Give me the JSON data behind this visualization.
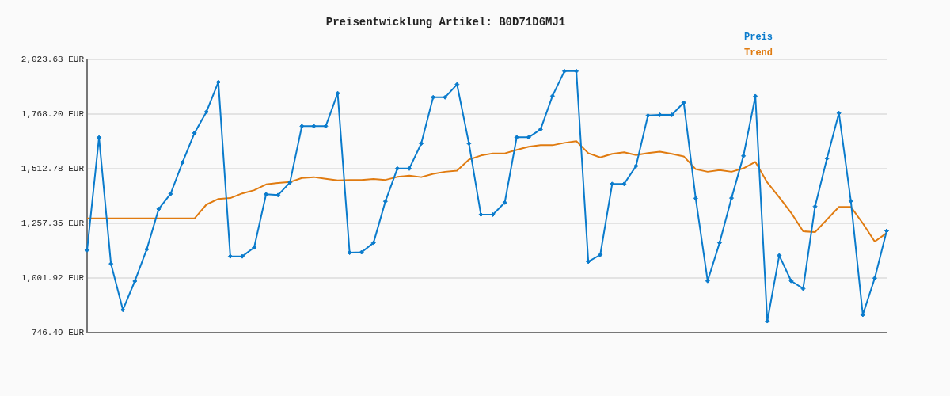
{
  "chart_data": {
    "type": "line",
    "title": "Preisentwicklung Artikel: B0D71D6MJ1",
    "categories": [
      null,
      null,
      null,
      null,
      null,
      null,
      null,
      null,
      null,
      null,
      null,
      null,
      null,
      null,
      null,
      null,
      null,
      null,
      null,
      null,
      null,
      null,
      null,
      null,
      null,
      null,
      null,
      null,
      null,
      null,
      null,
      null,
      null,
      null,
      null,
      null,
      null,
      null,
      null,
      null,
      null,
      null,
      null,
      null,
      null,
      null,
      null,
      null,
      null,
      null,
      null,
      null,
      null,
      null,
      null,
      null,
      null,
      null,
      null,
      null,
      null,
      null,
      null,
      null,
      null,
      null,
      null,
      null
    ],
    "series": [
      {
        "name": "Preis",
        "color": "#0a7bcc",
        "marker": "diamond",
        "values": [
          1132,
          1658,
          1068,
          853,
          987,
          1136,
          1324,
          1395,
          1542,
          1679,
          1778,
          1917,
          1103,
          1103,
          1144,
          1393,
          1389,
          1448,
          1711,
          1711,
          1711,
          1865,
          1120,
          1122,
          1166,
          1360,
          1513,
          1513,
          1630,
          1846,
          1846,
          1906,
          1630,
          1298,
          1298,
          1354,
          1659,
          1659,
          1696,
          1852,
          1968,
          1968,
          1078,
          1110,
          1441,
          1441,
          1525,
          1761,
          1764,
          1764,
          1821,
          1374,
          988,
          1166,
          1375,
          1572,
          1851,
          800,
          1107,
          988,
          952,
          1336,
          1560,
          1772,
          1361,
          830,
          1001,
          1222
        ]
      },
      {
        "name": "Trend",
        "color": "#e07b10",
        "marker": "none",
        "values": [
          1280,
          1280,
          1280,
          1280,
          1280,
          1280,
          1280,
          1280,
          1280,
          1280,
          1345,
          1371,
          1375,
          1397,
          1412,
          1439,
          1446,
          1450,
          1469,
          1473,
          1465,
          1458,
          1460,
          1460,
          1464,
          1460,
          1474,
          1480,
          1473,
          1488,
          1498,
          1503,
          1555,
          1574,
          1584,
          1584,
          1600,
          1615,
          1622,
          1622,
          1633,
          1641,
          1585,
          1565,
          1582,
          1589,
          1576,
          1585,
          1592,
          1582,
          1570,
          1510,
          1498,
          1506,
          1498,
          1514,
          1544,
          1448,
          1379,
          1306,
          1220,
          1216,
          1275,
          1334,
          1334,
          1257,
          1172,
          1212
        ]
      }
    ],
    "ylim": [
      746.49,
      2023.63
    ],
    "yticks": [
      {
        "value": 746.49,
        "label": "746.49 EUR"
      },
      {
        "value": 1001.92,
        "label": "1,001.92 EUR"
      },
      {
        "value": 1257.35,
        "label": "1,257.35 EUR"
      },
      {
        "value": 1512.78,
        "label": "1,512.78 EUR"
      },
      {
        "value": 1768.2,
        "label": "1,768.20 EUR"
      },
      {
        "value": 2023.63,
        "label": "2,023.63 EUR"
      }
    ],
    "grid": "y",
    "legend": "top right",
    "tick_labels": "y",
    "line_style": "solid"
  }
}
